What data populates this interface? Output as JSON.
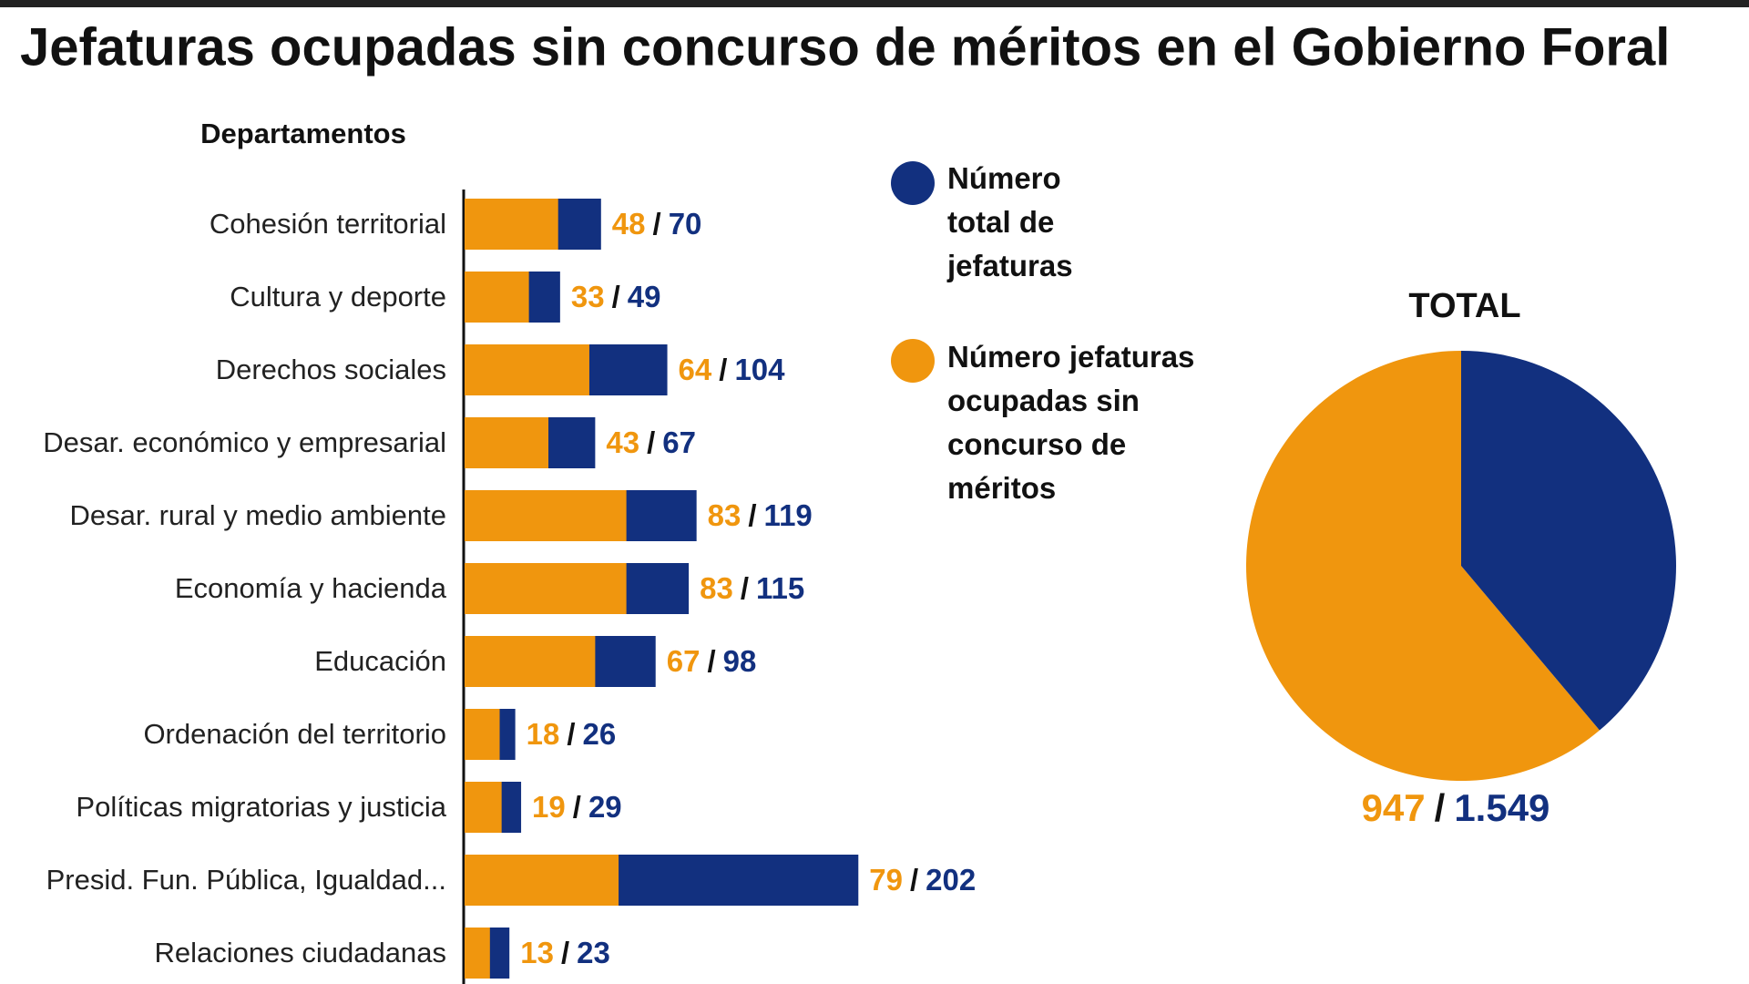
{
  "title": "Jefaturas ocupadas sin concurso de méritos en el Gobierno Foral",
  "chart_data": [
    {
      "type": "bar",
      "y_label": "Departamentos",
      "separator": "/",
      "categories": [
        "Cohesión territorial",
        "Cultura y deporte",
        "Derechos sociales",
        "Desar. económico y empresarial",
        "Desar. rural y medio ambiente",
        "Economía y hacienda",
        "Educación",
        "Ordenación del territorio",
        "Políticas migratorias y justicia",
        "Presid. Fun. Pública, Igualdad...",
        "Relaciones ciudadanas"
      ],
      "series": [
        {
          "name": "Número total de jefaturas",
          "color": "#12307f",
          "values": [
            70,
            49,
            104,
            67,
            119,
            115,
            98,
            26,
            29,
            202,
            23
          ]
        },
        {
          "name": "Número jefaturas ocupadas sin concurso de méritos",
          "color": "#f0960e",
          "values": [
            48,
            33,
            64,
            43,
            83,
            83,
            67,
            18,
            19,
            79,
            13
          ]
        }
      ]
    },
    {
      "type": "pie",
      "title": "TOTAL",
      "separator": "/",
      "part": 947,
      "part_color": "#f0960e",
      "total": 1549,
      "total_label": "1.549",
      "total_color": "#12307f"
    }
  ]
}
